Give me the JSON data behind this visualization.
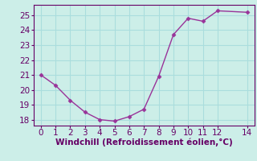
{
  "x": [
    0,
    1,
    2,
    3,
    4,
    5,
    6,
    7,
    8,
    9,
    10,
    11,
    12,
    14
  ],
  "y": [
    21.0,
    20.3,
    19.3,
    18.5,
    18.0,
    17.9,
    18.2,
    18.7,
    20.9,
    23.7,
    24.8,
    24.6,
    25.3,
    25.2
  ],
  "line_color": "#993399",
  "marker": "D",
  "marker_size": 2.5,
  "background_color": "#cceee8",
  "grid_color": "#aadddd",
  "xlabel": "Windchill (Refroidissement éolien,°C)",
  "xlabel_color": "#660066",
  "tick_color": "#660066",
  "label_color": "#660066",
  "ylim": [
    17.6,
    25.7
  ],
  "xlim": [
    -0.5,
    14.5
  ],
  "yticks": [
    18,
    19,
    20,
    21,
    22,
    23,
    24,
    25
  ],
  "xticks": [
    0,
    1,
    2,
    3,
    4,
    5,
    6,
    7,
    8,
    9,
    10,
    11,
    12,
    14
  ],
  "linewidth": 1.0,
  "font_size": 7.5
}
